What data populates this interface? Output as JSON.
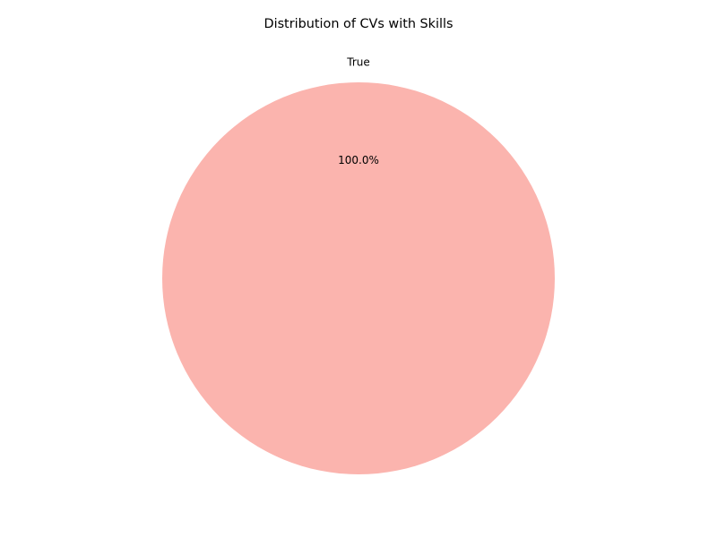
{
  "chart_data": {
    "type": "pie",
    "title": "Distribution of CVs with Skills",
    "slices": [
      {
        "label": "True",
        "value": 100.0,
        "percent_label": "100.0%",
        "color": "#fbb4ae"
      }
    ]
  }
}
